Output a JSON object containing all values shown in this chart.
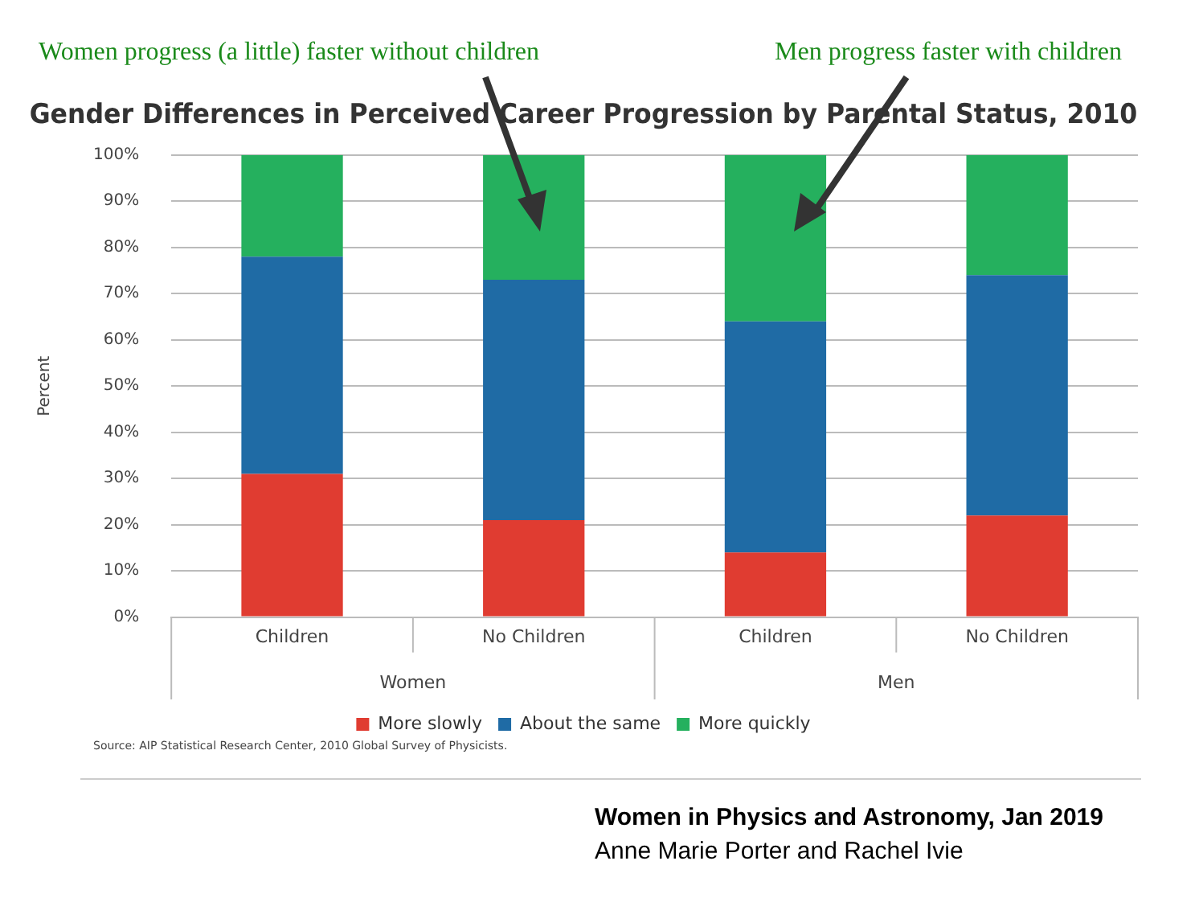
{
  "chart_data": {
    "type": "bar",
    "title": "Gender Differences in Perceived Career Progression by Parental Status, 2010",
    "ylabel": "Percent",
    "categories": [
      "Children",
      "No Children",
      "Children",
      "No Children"
    ],
    "stacked": true,
    "series": [
      {
        "name": "More slowly",
        "color": "#e03c31",
        "values": [
          31,
          21,
          14,
          22
        ]
      },
      {
        "name": "About the same",
        "color": "#1f6ba5",
        "values": [
          47,
          52,
          50,
          52
        ]
      },
      {
        "name": "More quickly",
        "color": "#25b05e",
        "values": [
          22,
          27,
          36,
          26
        ]
      }
    ],
    "ylim": [
      0,
      100
    ],
    "yticks": [
      {
        "value": 0,
        "label": "0%"
      },
      {
        "value": 10,
        "label": "10%"
      },
      {
        "value": 20,
        "label": "20%"
      },
      {
        "value": 30,
        "label": "30%"
      },
      {
        "value": 40,
        "label": "40%"
      },
      {
        "value": 50,
        "label": "50%"
      },
      {
        "value": 60,
        "label": "60%"
      },
      {
        "value": 70,
        "label": "70%"
      },
      {
        "value": 80,
        "label": "80%"
      },
      {
        "value": 90,
        "label": "90%"
      },
      {
        "value": 100,
        "label": "100%"
      }
    ],
    "grid": "y",
    "legend": "bottom",
    "annotations": [
      "Women progress (a little) faster without children",
      "Men progress faster with children",
      "Women",
      "Men",
      "Source: AIP Statistical Research Center, 2010 Global Survey of Physicists.",
      "Women in Physics and Astronomy, Jan 2019",
      "Anne Marie Porter and Rachel Ivie"
    ]
  }
}
